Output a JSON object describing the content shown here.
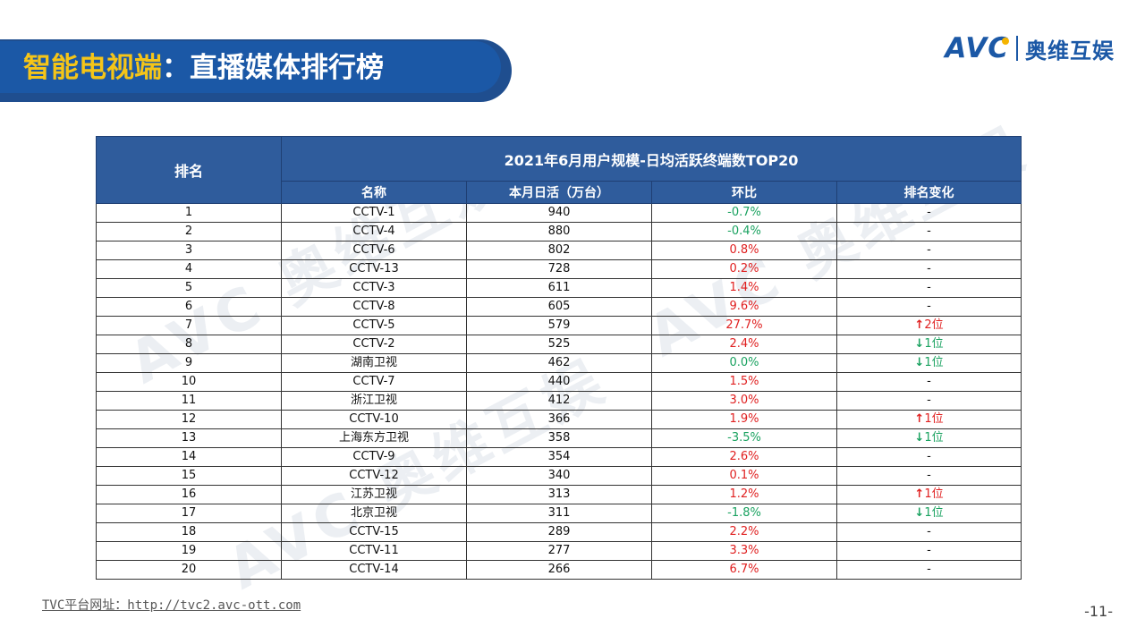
{
  "header": {
    "title_part1": "智能电视端",
    "title_part2": "：直播媒体排行榜"
  },
  "logo": {
    "brand": "AVC",
    "brand_cn": "奥维互娱"
  },
  "watermark": {
    "brand": "AVC",
    "brand_cn": "奥维互娱"
  },
  "table": {
    "rank_header": "排名",
    "title": "2021年6月用户规模-日均活跃终端数TOP20",
    "columns": [
      "名称",
      "本月日活（万台）",
      "环比",
      "排名变化"
    ],
    "rows": [
      {
        "rank": "1",
        "name": "CCTV-1",
        "dau": "940",
        "mom": "-0.7%",
        "mom_dir": "neg",
        "change": "-",
        "change_dir": "none"
      },
      {
        "rank": "2",
        "name": "CCTV-4",
        "dau": "880",
        "mom": "-0.4%",
        "mom_dir": "neg",
        "change": "-",
        "change_dir": "none"
      },
      {
        "rank": "3",
        "name": "CCTV-6",
        "dau": "802",
        "mom": "0.8%",
        "mom_dir": "pos",
        "change": "-",
        "change_dir": "none"
      },
      {
        "rank": "4",
        "name": "CCTV-13",
        "dau": "728",
        "mom": "0.2%",
        "mom_dir": "pos",
        "change": "-",
        "change_dir": "none"
      },
      {
        "rank": "5",
        "name": "CCTV-3",
        "dau": "611",
        "mom": "1.4%",
        "mom_dir": "pos",
        "change": "-",
        "change_dir": "none"
      },
      {
        "rank": "6",
        "name": "CCTV-8",
        "dau": "605",
        "mom": "9.6%",
        "mom_dir": "pos",
        "change": "-",
        "change_dir": "none"
      },
      {
        "rank": "7",
        "name": "CCTV-5",
        "dau": "579",
        "mom": "27.7%",
        "mom_dir": "pos",
        "change": "2位",
        "change_dir": "up"
      },
      {
        "rank": "8",
        "name": "CCTV-2",
        "dau": "525",
        "mom": "2.4%",
        "mom_dir": "pos",
        "change": "1位",
        "change_dir": "down"
      },
      {
        "rank": "9",
        "name": "湖南卫视",
        "dau": "462",
        "mom": "0.0%",
        "mom_dir": "zero",
        "change": "1位",
        "change_dir": "down"
      },
      {
        "rank": "10",
        "name": "CCTV-7",
        "dau": "440",
        "mom": "1.5%",
        "mom_dir": "pos",
        "change": "-",
        "change_dir": "none"
      },
      {
        "rank": "11",
        "name": "浙江卫视",
        "dau": "412",
        "mom": "3.0%",
        "mom_dir": "pos",
        "change": "-",
        "change_dir": "none"
      },
      {
        "rank": "12",
        "name": "CCTV-10",
        "dau": "366",
        "mom": "1.9%",
        "mom_dir": "pos",
        "change": "1位",
        "change_dir": "up"
      },
      {
        "rank": "13",
        "name": "上海东方卫视",
        "dau": "358",
        "mom": "-3.5%",
        "mom_dir": "neg",
        "change": "1位",
        "change_dir": "down"
      },
      {
        "rank": "14",
        "name": "CCTV-9",
        "dau": "354",
        "mom": "2.6%",
        "mom_dir": "pos",
        "change": "-",
        "change_dir": "none"
      },
      {
        "rank": "15",
        "name": "CCTV-12",
        "dau": "340",
        "mom": "0.1%",
        "mom_dir": "pos",
        "change": "-",
        "change_dir": "none"
      },
      {
        "rank": "16",
        "name": "江苏卫视",
        "dau": "313",
        "mom": "1.2%",
        "mom_dir": "pos",
        "change": "1位",
        "change_dir": "up"
      },
      {
        "rank": "17",
        "name": "北京卫视",
        "dau": "311",
        "mom": "-1.8%",
        "mom_dir": "neg",
        "change": "1位",
        "change_dir": "down"
      },
      {
        "rank": "18",
        "name": "CCTV-15",
        "dau": "289",
        "mom": "2.2%",
        "mom_dir": "pos",
        "change": "-",
        "change_dir": "none"
      },
      {
        "rank": "19",
        "name": "CCTV-11",
        "dau": "277",
        "mom": "3.3%",
        "mom_dir": "pos",
        "change": "-",
        "change_dir": "none"
      },
      {
        "rank": "20",
        "name": "CCTV-14",
        "dau": "266",
        "mom": "6.7%",
        "mom_dir": "pos",
        "change": "-",
        "change_dir": "none"
      }
    ]
  },
  "colors": {
    "header_blue": "#2f5c9c",
    "title_yellow": "#f5c518",
    "positive_red": "#e02020",
    "negative_green": "#1aa260"
  },
  "footer": {
    "link_text": "TVC平台网址：http://tvc2.avc-ott.com"
  },
  "page_number": "-11-"
}
